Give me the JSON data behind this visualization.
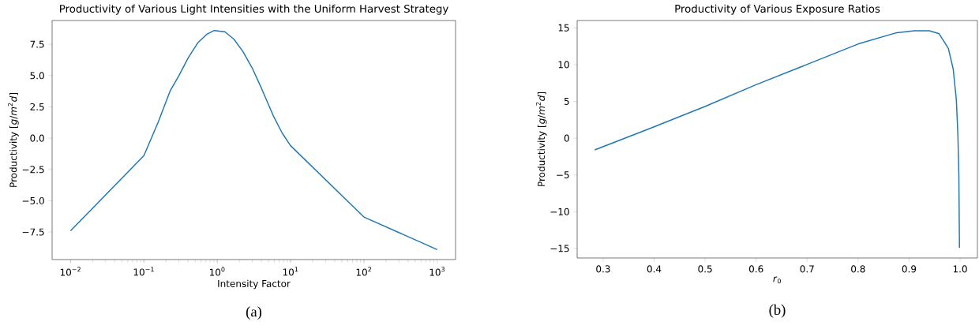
{
  "chart_data": [
    {
      "type": "line",
      "title": "Productivity of Various Light Intensities with the Uniform Harvest Strategy",
      "xlabel": "Intensity Factor",
      "ylabel": "Productivity [*g*/*m*$^{2}$*d*]",
      "log": "x",
      "x": [
        0.01,
        0.1,
        0.157,
        0.229,
        0.3,
        0.4,
        0.54,
        0.72,
        0.91,
        1.27,
        1.69,
        2.25,
        3.0,
        4.0,
        5.8,
        7.7,
        10,
        100,
        1000
      ],
      "series": [
        {
          "color": "#1f77b4",
          "values": [
            -7.4,
            -1.4,
            1.3,
            3.8,
            5.0,
            6.4,
            7.6,
            8.3,
            8.6,
            8.5,
            7.9,
            6.9,
            5.6,
            4.0,
            1.8,
            0.4,
            -0.6,
            -6.3,
            -8.9
          ]
        }
      ],
      "xlim": [
        0.0056,
        1778
      ],
      "ylim": [
        -9.7,
        9.4
      ],
      "xticks": [
        {
          "value": 0.01,
          "label": "10$^{−2}$"
        },
        {
          "value": 0.1,
          "label": "10$^{−1}$"
        },
        {
          "value": 1,
          "label": "10$^{0}$"
        },
        {
          "value": 10,
          "label": "10$^{1}$"
        },
        {
          "value": 100,
          "label": "10$^{2}$"
        },
        {
          "value": 1000,
          "label": "10$^{3}$"
        }
      ],
      "yticks": [
        {
          "value": -7.5,
          "label": "−7.5"
        },
        {
          "value": -5,
          "label": "−5.0"
        },
        {
          "value": -2.5,
          "label": "−2.5"
        },
        {
          "value": 0,
          "label": "0.0"
        },
        2.5,
        {
          "value": 5,
          "label": "5.0"
        },
        7.5
      ],
      "annotations": [
        "(a)"
      ]
    },
    {
      "type": "line",
      "title": "Productivity of Various Exposure Ratios",
      "xlabel": "*r*$_{0}$",
      "ylabel": "Productivity [*g*/*m*$^{2}$*d*]",
      "x": [
        0.2835,
        0.395,
        0.4996,
        0.6007,
        0.699,
        0.7997,
        0.873,
        0.91,
        0.94,
        0.959,
        0.977,
        0.9865,
        0.9927,
        0.9957,
        0.9976,
        0.9988
      ],
      "series": [
        {
          "color": "#1f77b4",
          "values": [
            -1.6,
            1.4,
            4.3,
            7.3,
            10.0,
            12.8,
            14.3,
            14.6,
            14.6,
            14.2,
            12.2,
            9.4,
            5.2,
            0.5,
            -5.0,
            -14.9
          ]
        }
      ],
      "xlim": [
        0.249,
        1.034
      ],
      "ylim": [
        -16.3,
        16.0
      ],
      "xticks": [
        0.3,
        0.4,
        0.5,
        0.6,
        0.7,
        0.8,
        0.9,
        {
          "value": 1,
          "label": "1.0"
        }
      ],
      "yticks": [
        {
          "value": -15,
          "label": "−15"
        },
        {
          "value": -10,
          "label": "−10"
        },
        {
          "value": -5,
          "label": "−5"
        },
        0,
        5,
        10,
        15
      ],
      "annotations": [
        "(b)"
      ]
    }
  ]
}
